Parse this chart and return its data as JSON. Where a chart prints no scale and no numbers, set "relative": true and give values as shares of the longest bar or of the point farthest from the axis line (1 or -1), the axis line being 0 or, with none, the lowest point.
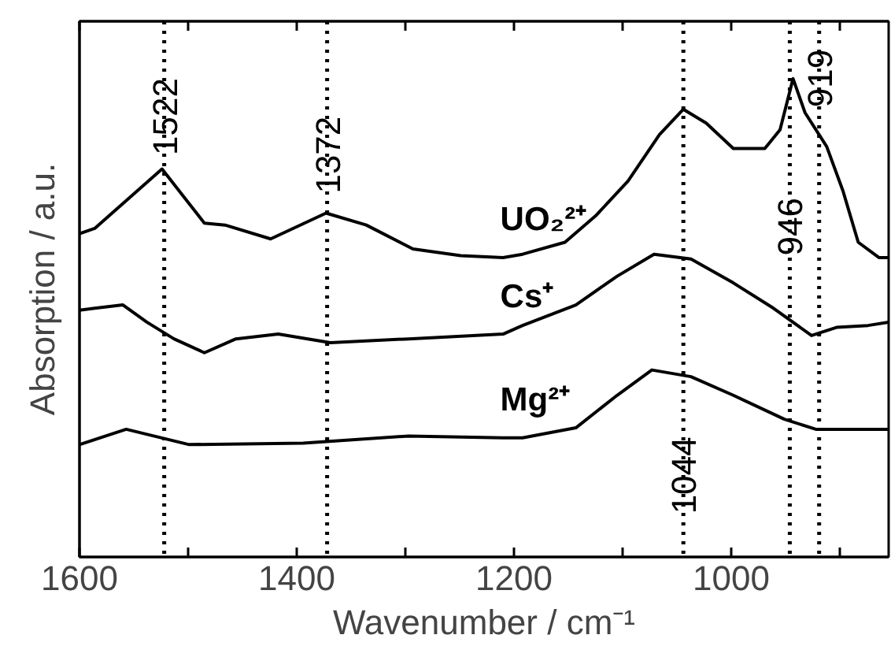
{
  "chart_data": {
    "type": "line",
    "relative": true,
    "xlabel": "Wavenumber / cm⁻¹",
    "ylabel": "Absorption / a.u.",
    "xlim": [
      1600,
      855
    ],
    "xticks": [
      1600,
      {
        "value": 1500,
        "label": null
      },
      1400,
      {
        "value": 1300,
        "label": null
      },
      1200,
      {
        "value": 1100,
        "label": null
      },
      1000,
      {
        "value": 900,
        "label": null
      }
    ],
    "grid": false,
    "marker": "none",
    "line_style": "solid",
    "series": [
      {
        "name": "UO₂²⁺",
        "color": "#000000",
        "x": [
          1600,
          1586,
          1524,
          1485,
          1466,
          1424,
          1373,
          1336,
          1293,
          1249,
          1210,
          1192,
          1153,
          1124,
          1095,
          1066,
          1044,
          1023,
          998,
          969,
          955,
          943,
          932,
          912,
          897,
          883,
          864,
          855
        ],
        "values": [
          0.676,
          0.687,
          0.811,
          0.698,
          0.694,
          0.665,
          0.719,
          0.694,
          0.644,
          0.63,
          0.626,
          0.633,
          0.658,
          0.715,
          0.786,
          0.883,
          0.936,
          0.907,
          0.854,
          0.854,
          0.893,
          1.0,
          0.929,
          0.858,
          0.765,
          0.658,
          0.626,
          0.626
        ]
      },
      {
        "name": "Cs⁺",
        "color": "#000000",
        "x": [
          1600,
          1586,
          1560,
          1538,
          1513,
          1485,
          1456,
          1417,
          1369,
          1297,
          1210,
          1192,
          1143,
          1105,
          1071,
          1037,
          998,
          961,
          926,
          903,
          874,
          855
        ],
        "values": [
          0.516,
          0.52,
          0.527,
          0.491,
          0.456,
          0.427,
          0.456,
          0.466,
          0.448,
          0.456,
          0.466,
          0.484,
          0.527,
          0.587,
          0.633,
          0.623,
          0.573,
          0.52,
          0.463,
          0.48,
          0.484,
          0.491
        ]
      },
      {
        "name": "Mg²⁺",
        "color": "#000000",
        "x": [
          1600,
          1557,
          1499,
          1394,
          1297,
          1210,
          1192,
          1143,
          1105,
          1073,
          1037,
          998,
          951,
          922,
          874,
          855
        ],
        "values": [
          0.235,
          0.267,
          0.235,
          0.238,
          0.253,
          0.249,
          0.249,
          0.27,
          0.338,
          0.391,
          0.377,
          0.338,
          0.288,
          0.267,
          0.267,
          0.267
        ]
      }
    ],
    "ref_lines": [
      {
        "axis": "x",
        "value": 1522,
        "line_style": "dotted"
      },
      {
        "axis": "x",
        "value": 1372,
        "line_style": "dotted"
      },
      {
        "axis": "x",
        "value": 1044,
        "line_style": "dotted"
      },
      {
        "axis": "x",
        "value": 946,
        "line_style": "dotted"
      },
      {
        "axis": "x",
        "value": 919,
        "line_style": "dotted"
      }
    ],
    "annotations": [
      {
        "text": "1522",
        "x": 1522,
        "y": 0.84
      },
      {
        "text": "1372",
        "x": 1372,
        "y": 0.76
      },
      {
        "text": "1044",
        "x": 1044,
        "y": 0.09
      },
      {
        "text": "946",
        "x": 946,
        "y": 0.63
      },
      {
        "text": "919",
        "x": 919,
        "y": 0.94
      }
    ]
  }
}
